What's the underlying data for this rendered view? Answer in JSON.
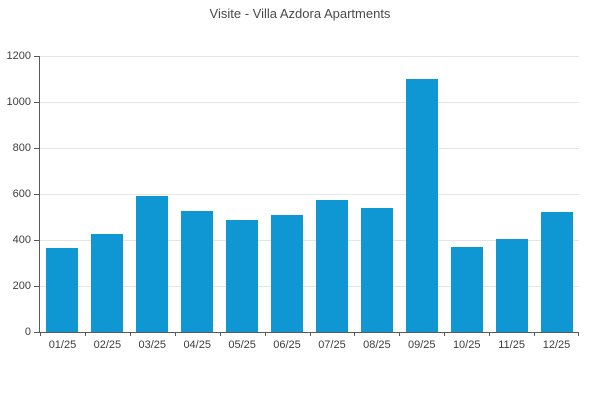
{
  "chart_data": {
    "type": "bar",
    "title": "Visite - Villa Azdora Apartments",
    "categories": [
      "01/25",
      "02/25",
      "03/25",
      "04/25",
      "05/25",
      "06/25",
      "07/25",
      "08/25",
      "09/25",
      "10/25",
      "11/25",
      "12/25"
    ],
    "values": [
      365,
      425,
      590,
      525,
      485,
      510,
      575,
      540,
      1100,
      370,
      405,
      520
    ],
    "xlabel": "",
    "ylabel": "",
    "ylim": [
      0,
      1200
    ],
    "ytick_step": 200,
    "ytick_labels": [
      "0",
      "200",
      "400",
      "600",
      "800",
      "1000",
      "1200"
    ],
    "grid": true,
    "legend": "none",
    "bar_color": "#0e97d2",
    "axis_color": "#5a5a5a",
    "grid_color": "#e4e4e4",
    "label_color": "#3d3d3d",
    "title_color": "#4a4a4a"
  }
}
